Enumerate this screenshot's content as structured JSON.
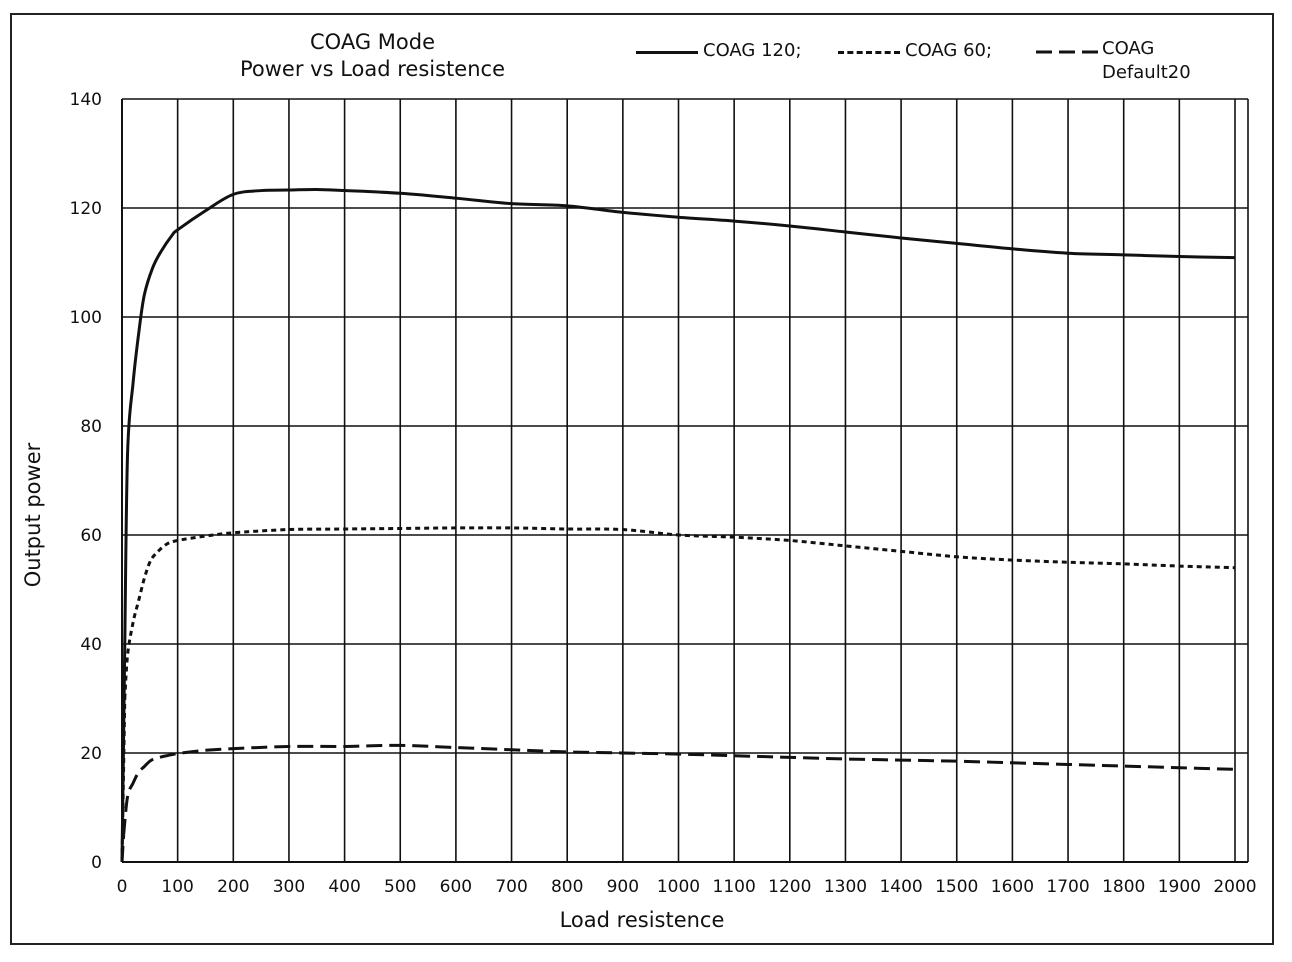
{
  "chart_data": {
    "type": "line",
    "title": "COAG Mode",
    "subtitle": "Power vs Load resistence",
    "xlabel": "Load resistence",
    "ylabel": "Output power",
    "xlim": [
      0,
      2000
    ],
    "ylim": [
      0,
      140
    ],
    "x_ticks": [
      "0",
      "100",
      "200",
      "300",
      "400",
      "500",
      "600",
      "700",
      "800",
      "900",
      "1000",
      "1100",
      "1200",
      "1300",
      "1400",
      "1500",
      "1600",
      "1700",
      "1800",
      "1900",
      "2000"
    ],
    "y_ticks": [
      "0",
      "20",
      "40",
      "60",
      "80",
      "100",
      "120",
      "140"
    ],
    "grid": true,
    "legend_position": "top-right",
    "series": [
      {
        "name": "COAG 120;",
        "style": "solid",
        "x": [
          5,
          10,
          20,
          30,
          40,
          55,
          70,
          90,
          100,
          150,
          200,
          250,
          300,
          350,
          400,
          500,
          600,
          700,
          800,
          900,
          1000,
          1100,
          1200,
          1300,
          1400,
          1500,
          1600,
          1700,
          1800,
          1900,
          2000
        ],
        "values": [
          40,
          75,
          88,
          97,
          104,
          109,
          112,
          115,
          116,
          119.5,
          122.5,
          123.2,
          123.3,
          123.4,
          123.2,
          122.7,
          121.8,
          120.8,
          120.4,
          119.2,
          118.3,
          117.6,
          116.7,
          115.6,
          114.5,
          113.5,
          112.5,
          111.7,
          111.4,
          111.1,
          110.9
        ]
      },
      {
        "name": "COAG 60;",
        "style": "short-dash",
        "x": [
          5,
          10,
          20,
          30,
          40,
          50,
          60,
          80,
          100,
          150,
          200,
          300,
          400,
          500,
          600,
          700,
          800,
          900,
          1000,
          1100,
          1200,
          1300,
          1400,
          1500,
          1600,
          1700,
          1800,
          1900,
          2000
        ],
        "values": [
          30,
          38,
          44,
          48,
          52,
          55,
          56.5,
          58.3,
          59,
          59.8,
          60.4,
          61,
          61.1,
          61.2,
          61.3,
          61.3,
          61.1,
          61,
          60,
          59.6,
          59,
          58,
          57,
          56,
          55.4,
          55,
          54.7,
          54.3,
          54
        ]
      },
      {
        "name": "COAG Default20",
        "style": "long-dash",
        "x": [
          3,
          10,
          20,
          30,
          40,
          50,
          60,
          80,
          100,
          150,
          200,
          300,
          400,
          500,
          600,
          700,
          800,
          900,
          1000,
          1100,
          1200,
          1300,
          1400,
          1500,
          1600,
          1700,
          1800,
          1900,
          2000
        ],
        "values": [
          5,
          12,
          14.5,
          16.5,
          17.5,
          18.5,
          19,
          19.5,
          19.9,
          20.5,
          20.8,
          21.2,
          21.2,
          21.4,
          21,
          20.6,
          20.2,
          20,
          19.8,
          19.5,
          19.2,
          18.9,
          18.7,
          18.5,
          18.2,
          17.9,
          17.6,
          17.3,
          17
        ]
      }
    ],
    "colors": {
      "line": "#111111",
      "grid": "#111111",
      "background": "#ffffff"
    }
  }
}
